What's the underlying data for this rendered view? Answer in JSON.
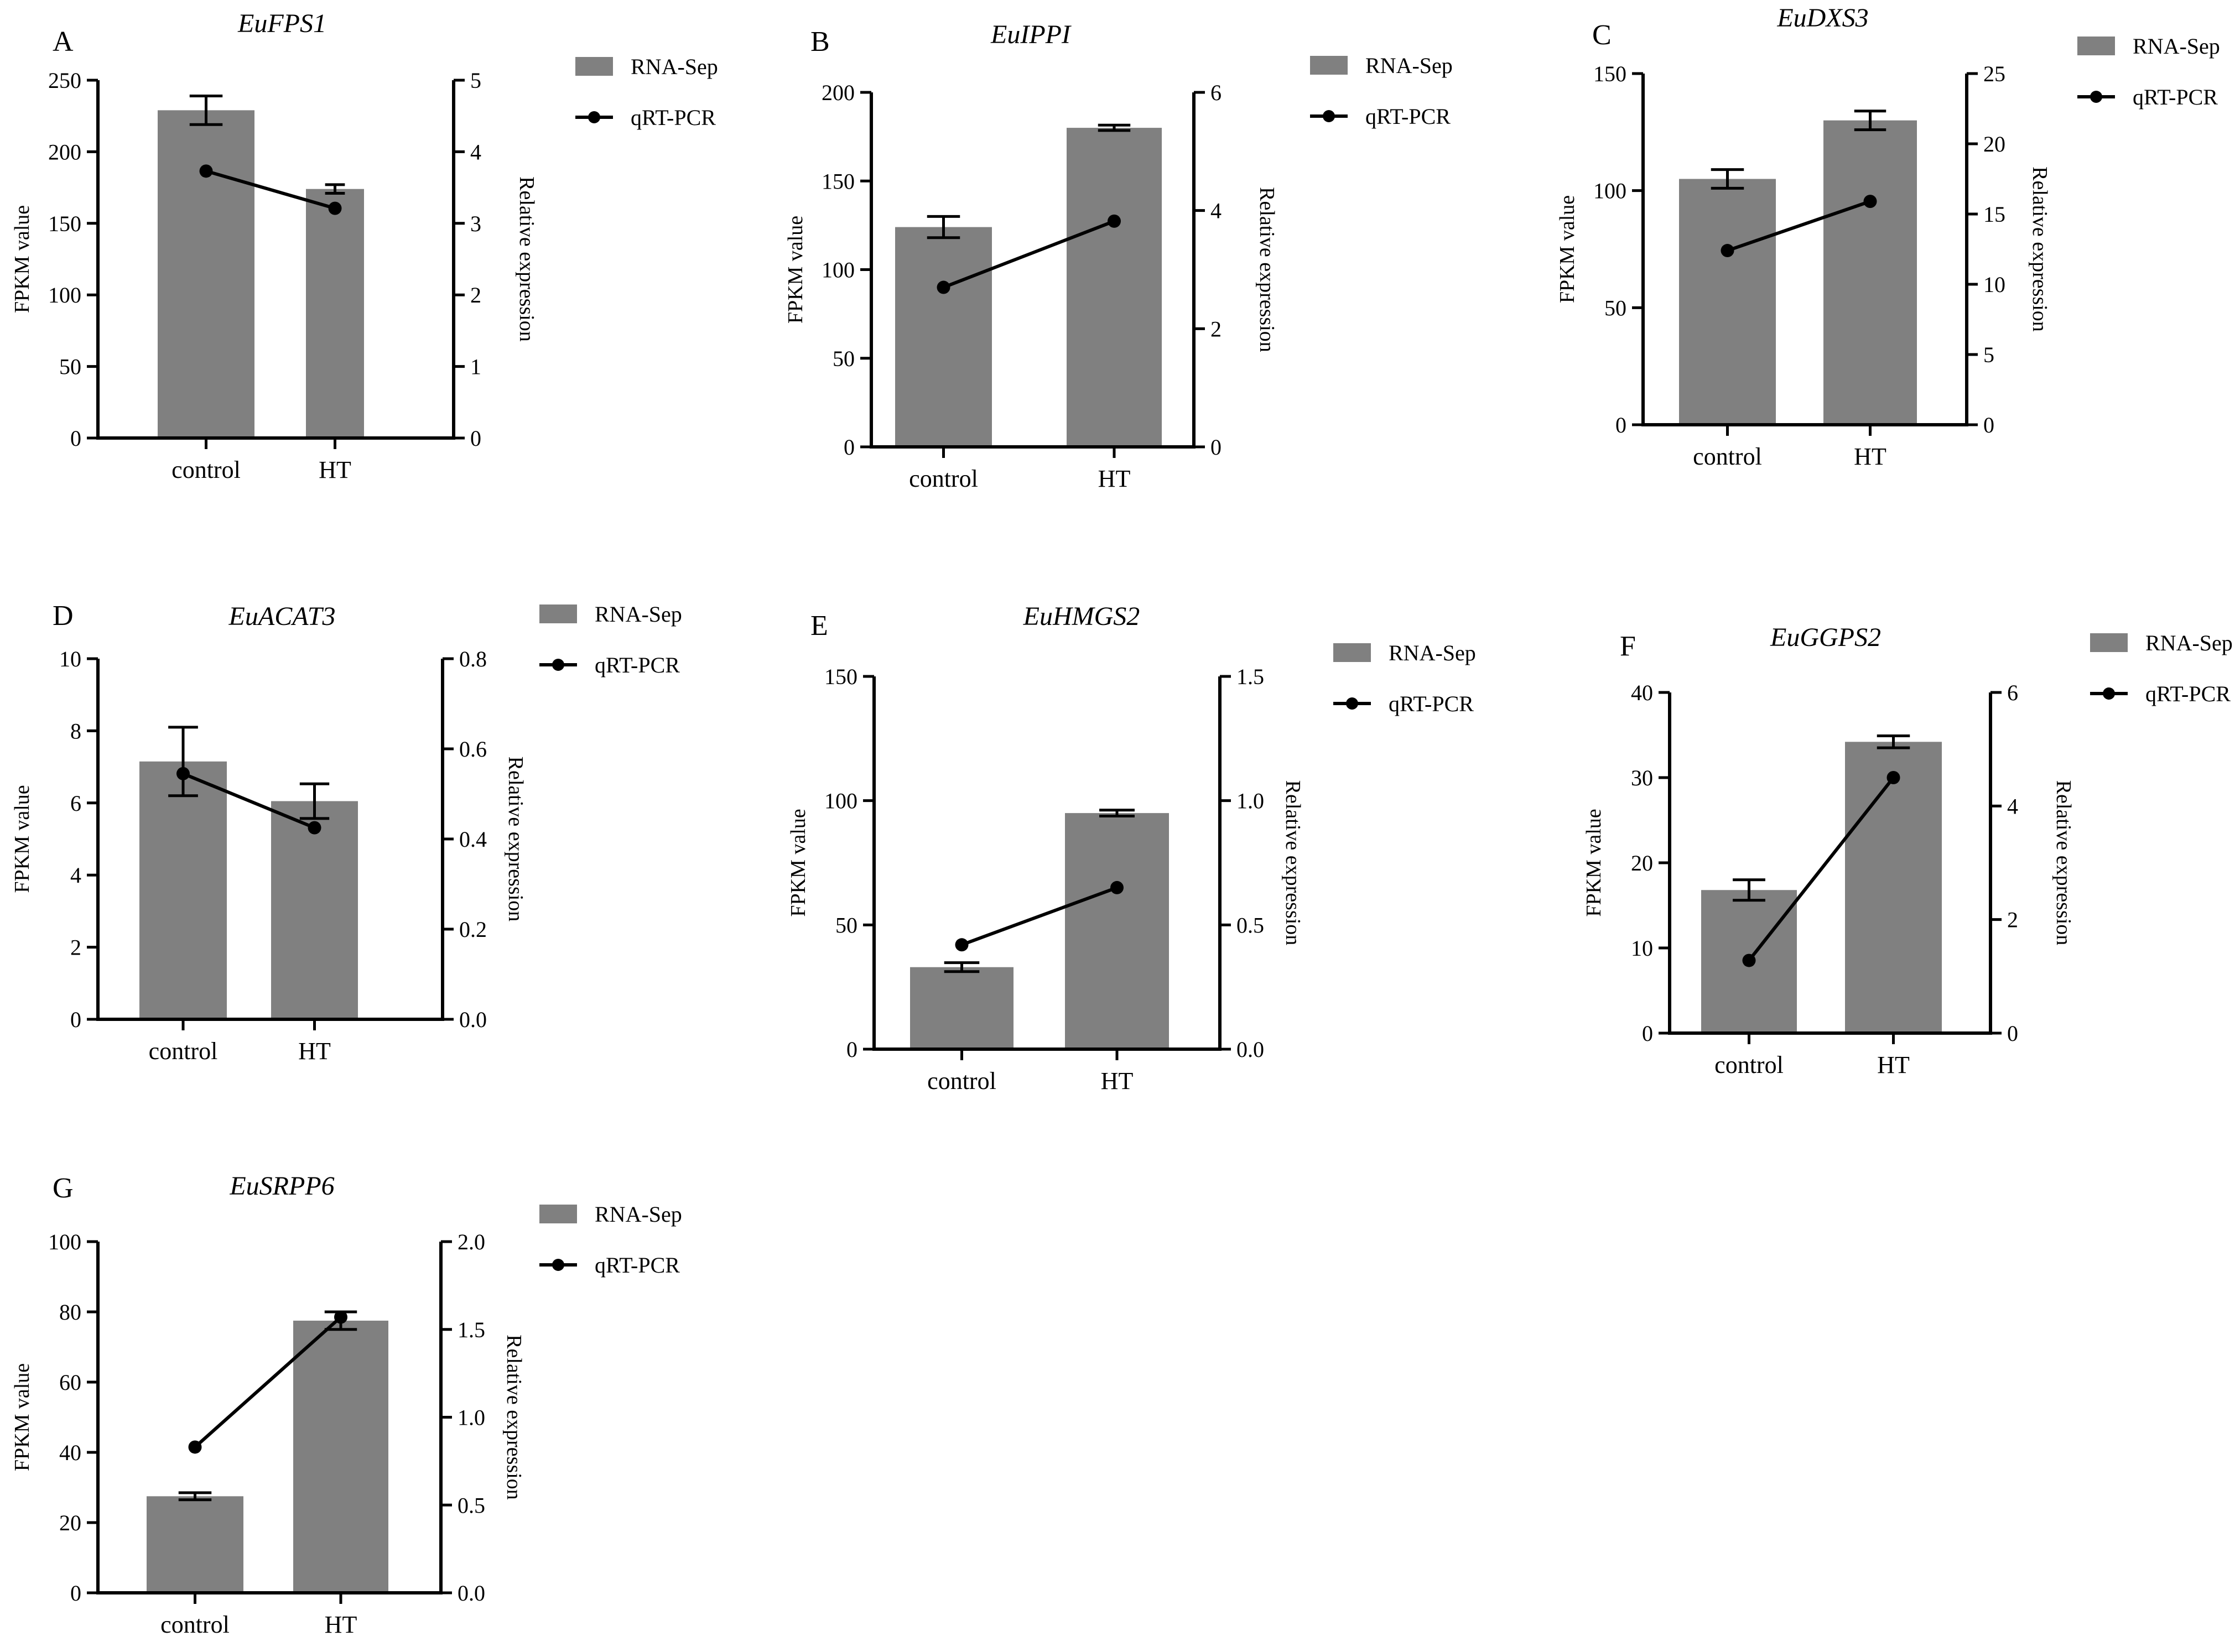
{
  "figure": {
    "colors": {
      "bar": "#808080",
      "line": "#000000",
      "axis": "#000000",
      "background": "#ffffff"
    }
  },
  "chart_data": [
    {
      "type": "bar+line",
      "panel": "A",
      "title": "EuFPS1",
      "categories": [
        "control",
        "HT"
      ],
      "ylabel": "FPKM value",
      "y2label": "Relative expression",
      "ylim": [
        0,
        250
      ],
      "yticks": [
        "0",
        "50",
        "100",
        "150",
        "200",
        "250"
      ],
      "y2lim": [
        0,
        5
      ],
      "y2ticks": [
        "0",
        "1",
        "2",
        "3",
        "4",
        "5"
      ],
      "series": [
        {
          "name": "RNA-Sep",
          "kind": "bar",
          "axis": "left",
          "values": [
            229,
            174
          ],
          "errors": [
            10,
            3
          ]
        },
        {
          "name": "qRT-PCR",
          "kind": "line",
          "axis": "right",
          "values": [
            3.73,
            3.21
          ]
        }
      ]
    },
    {
      "type": "bar+line",
      "panel": "B",
      "title": "EuIPPI",
      "categories": [
        "control",
        "HT"
      ],
      "ylabel": "FPKM value",
      "y2label": "Relative expression",
      "ylim": [
        0,
        200
      ],
      "yticks": [
        "0",
        "50",
        "100",
        "150",
        "200"
      ],
      "y2lim": [
        0,
        6
      ],
      "y2ticks": [
        "0",
        "2",
        "4",
        "6"
      ],
      "series": [
        {
          "name": "RNA-Sep",
          "kind": "bar",
          "axis": "left",
          "values": [
            124,
            180
          ],
          "errors": [
            6,
            1.5
          ]
        },
        {
          "name": "qRT-PCR",
          "kind": "line",
          "axis": "right",
          "values": [
            2.7,
            3.82
          ]
        }
      ]
    },
    {
      "type": "bar+line",
      "panel": "C",
      "title": "EuDXS3",
      "categories": [
        "control",
        "HT"
      ],
      "ylabel": "FPKM value",
      "y2label": "Relative expression",
      "ylim": [
        0,
        150
      ],
      "yticks": [
        "0",
        "50",
        "100",
        "150"
      ],
      "y2lim": [
        0,
        25
      ],
      "y2ticks": [
        "0",
        "5",
        "10",
        "15",
        "20",
        "25"
      ],
      "series": [
        {
          "name": "RNA-Sep",
          "kind": "bar",
          "axis": "left",
          "values": [
            105,
            130
          ],
          "errors": [
            4,
            4
          ]
        },
        {
          "name": "qRT-PCR",
          "kind": "line",
          "axis": "right",
          "values": [
            12.4,
            15.9
          ]
        }
      ]
    },
    {
      "type": "bar+line",
      "panel": "D",
      "title": "EuACAT3",
      "categories": [
        "control",
        "HT"
      ],
      "ylabel": "FPKM value",
      "y2label": "Relative expression",
      "ylim": [
        0,
        10
      ],
      "yticks": [
        "0",
        "2",
        "4",
        "6",
        "8",
        "10"
      ],
      "y2lim": [
        0,
        0.8
      ],
      "y2ticks": [
        "0.0",
        "0.2",
        "0.4",
        "0.6",
        "0.8"
      ],
      "series": [
        {
          "name": "RNA-Sep",
          "kind": "bar",
          "axis": "left",
          "values": [
            7.15,
            6.05
          ],
          "errors": [
            0.95,
            0.48
          ]
        },
        {
          "name": "qRT-PCR",
          "kind": "line",
          "axis": "right",
          "values": [
            0.545,
            0.425
          ]
        }
      ]
    },
    {
      "type": "bar+line",
      "panel": "E",
      "title": "EuHMGS2",
      "categories": [
        "control",
        "HT"
      ],
      "ylabel": "FPKM value",
      "y2label": "Relative expression",
      "ylim": [
        0,
        150
      ],
      "yticks": [
        "0",
        "50",
        "100",
        "150"
      ],
      "y2lim": [
        0,
        1.5
      ],
      "y2ticks": [
        "0.0",
        "0.5",
        "1.0",
        "1.5"
      ],
      "series": [
        {
          "name": "RNA-Sep",
          "kind": "bar",
          "axis": "left",
          "values": [
            33,
            95
          ],
          "errors": [
            1.8,
            1.2
          ]
        },
        {
          "name": "qRT-PCR",
          "kind": "line",
          "axis": "right",
          "values": [
            0.42,
            0.65
          ]
        }
      ]
    },
    {
      "type": "bar+line",
      "panel": "F",
      "title": "EuGGPS2",
      "categories": [
        "control",
        "HT"
      ],
      "ylabel": "FPKM value",
      "y2label": "Relative expression",
      "ylim": [
        0,
        40
      ],
      "yticks": [
        "0",
        "10",
        "20",
        "30",
        "40"
      ],
      "y2lim": [
        0,
        6
      ],
      "y2ticks": [
        "0",
        "2",
        "4",
        "6"
      ],
      "series": [
        {
          "name": "RNA-Sep",
          "kind": "bar",
          "axis": "left",
          "values": [
            16.8,
            34.2
          ],
          "errors": [
            1.2,
            0.7
          ]
        },
        {
          "name": "qRT-PCR",
          "kind": "line",
          "axis": "right",
          "values": [
            1.28,
            4.5
          ]
        }
      ]
    },
    {
      "type": "bar+line",
      "panel": "G",
      "title": "EuSRPP6",
      "categories": [
        "control",
        "HT"
      ],
      "ylabel": "FPKM value",
      "y2label": "Relative expression",
      "ylim": [
        0,
        100
      ],
      "yticks": [
        "0",
        "20",
        "40",
        "60",
        "80",
        "100"
      ],
      "y2lim": [
        0,
        2.0
      ],
      "y2ticks": [
        "0.0",
        "0.5",
        "1.0",
        "1.5",
        "2.0"
      ],
      "series": [
        {
          "name": "RNA-Sep",
          "kind": "bar",
          "axis": "left",
          "values": [
            27.5,
            77.5
          ],
          "errors": [
            1,
            2.5
          ]
        },
        {
          "name": "qRT-PCR",
          "kind": "line",
          "axis": "right",
          "values": [
            0.83,
            1.57
          ]
        }
      ]
    }
  ]
}
